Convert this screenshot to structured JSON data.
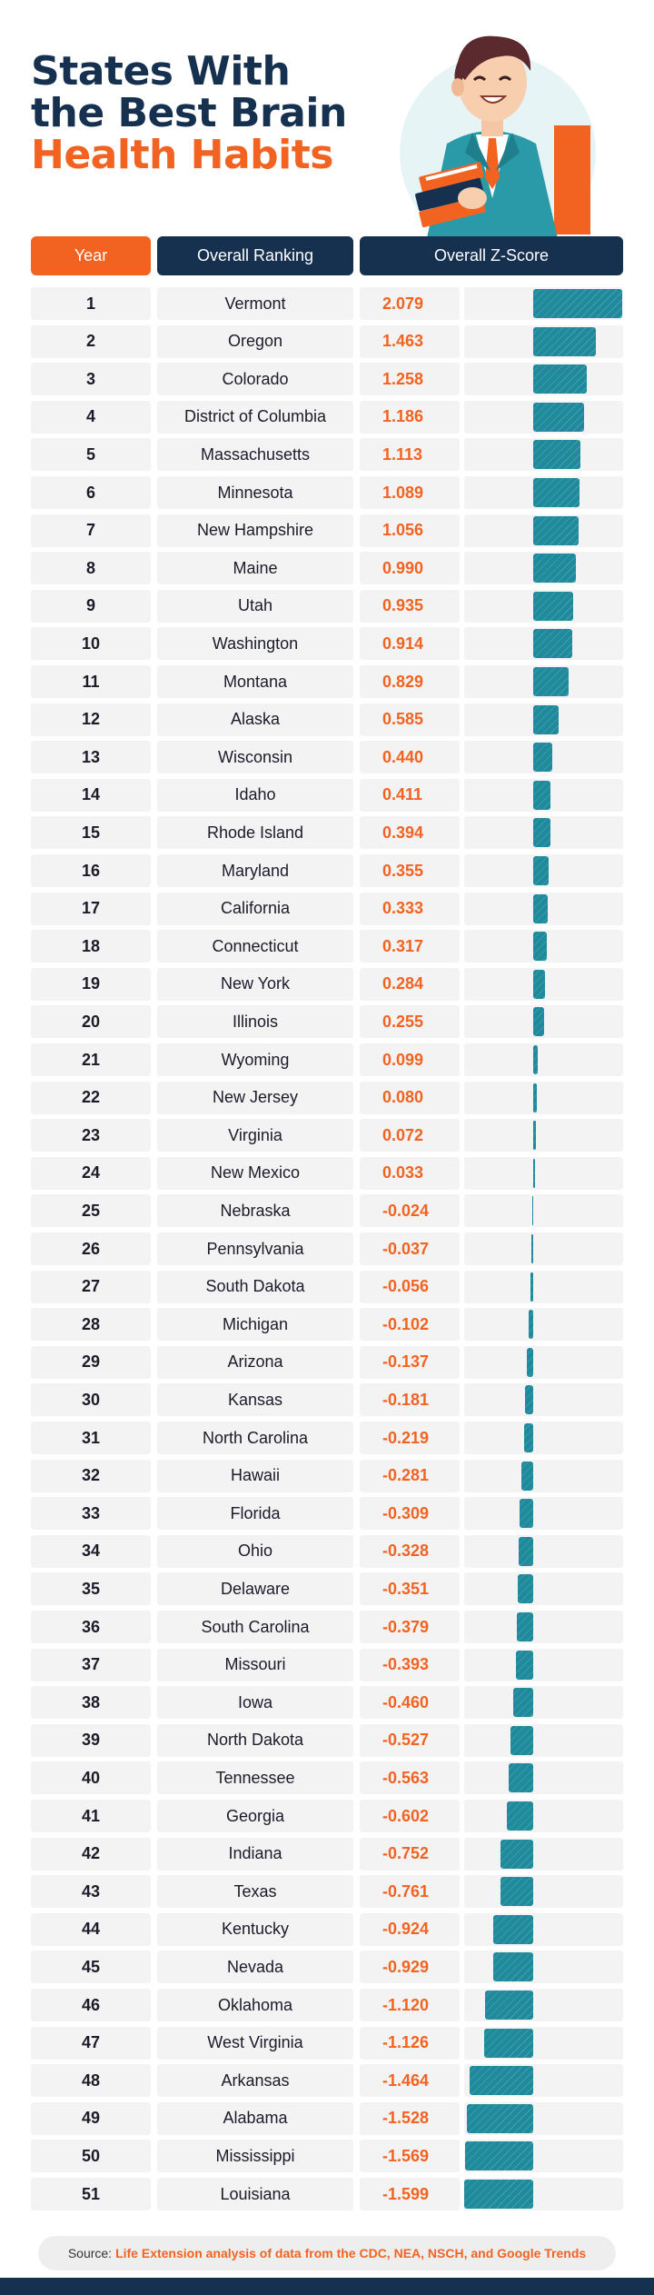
{
  "title": {
    "line1": "States With",
    "line2": "the Best Brain",
    "line3": "Health Habits"
  },
  "colors": {
    "navy": "#16314f",
    "orange": "#f26322",
    "teal": "#1f8a9c",
    "row_bg": "#f3f3f3"
  },
  "header": {
    "year": "Year",
    "ranking": "Overall Ranking",
    "zscore": "Overall Z-Score"
  },
  "chart_data": {
    "type": "bar",
    "orientation": "horizontal",
    "title": "States With the Best Brain Health Habits",
    "categories": [
      "Vermont",
      "Oregon",
      "Colorado",
      "District of Columbia",
      "Massachusetts",
      "Minnesota",
      "New Hampshire",
      "Maine",
      "Utah",
      "Washington",
      "Montana",
      "Alaska",
      "Wisconsin",
      "Idaho",
      "Rhode Island",
      "Maryland",
      "California",
      "Connecticut",
      "New York",
      "Illinois",
      "Wyoming",
      "New Jersey",
      "Virginia",
      "New Mexico",
      "Nebraska",
      "Pennsylvania",
      "South Dakota",
      "Michigan",
      "Arizona",
      "Kansas",
      "North Carolina",
      "Hawaii",
      "Florida",
      "Ohio",
      "Delaware",
      "South Carolina",
      "Missouri",
      "Iowa",
      "North Dakota",
      "Tennessee",
      "Georgia",
      "Indiana",
      "Texas",
      "Kentucky",
      "Nevada",
      "Oklahoma",
      "West Virginia",
      "Arkansas",
      "Alabama",
      "Mississippi",
      "Louisiana"
    ],
    "ranks": [
      "1",
      "2",
      "3",
      "4",
      "5",
      "6",
      "7",
      "8",
      "9",
      "10",
      "11",
      "12",
      "13",
      "14",
      "15",
      "16",
      "17",
      "18",
      "19",
      "20",
      "21",
      "22",
      "23",
      "24",
      "25",
      "26",
      "27",
      "28",
      "29",
      "30",
      "31",
      "32",
      "33",
      "34",
      "35",
      "36",
      "37",
      "38",
      "39",
      "40",
      "41",
      "42",
      "43",
      "44",
      "45",
      "46",
      "47",
      "48",
      "49",
      "50",
      "51"
    ],
    "values": [
      2.079,
      1.463,
      1.258,
      1.186,
      1.113,
      1.089,
      1.056,
      0.99,
      0.935,
      0.914,
      0.829,
      0.585,
      0.44,
      0.411,
      0.394,
      0.355,
      0.333,
      0.317,
      0.284,
      0.255,
      0.099,
      0.08,
      0.072,
      0.033,
      -0.024,
      -0.037,
      -0.056,
      -0.102,
      -0.137,
      -0.181,
      -0.219,
      -0.281,
      -0.309,
      -0.328,
      -0.351,
      -0.379,
      -0.393,
      -0.46,
      -0.527,
      -0.563,
      -0.602,
      -0.752,
      -0.761,
      -0.924,
      -0.929,
      -1.12,
      -1.126,
      -1.464,
      -1.528,
      -1.569,
      -1.599
    ],
    "labels": [
      "2.079",
      "1.463",
      "1.258",
      "1.186",
      "1.113",
      "1.089",
      "1.056",
      "0.990",
      "0.935",
      "0.914",
      "0.829",
      "0.585",
      "0.440",
      "0.411",
      "0.394",
      "0.355",
      "0.333",
      "0.317",
      "0.284",
      "0.255",
      "0.099",
      "0.080",
      "0.072",
      "0.033",
      "-0.024",
      "-0.037",
      "-0.056",
      "-0.102",
      "-0.137",
      "-0.181",
      "-0.219",
      "-0.281",
      "-0.309",
      "-0.328",
      "-0.351",
      "-0.379",
      "-0.393",
      "-0.460",
      "-0.527",
      "-0.563",
      "-0.602",
      "-0.752",
      "-0.761",
      "-0.924",
      "-0.929",
      "-1.120",
      "-1.126",
      "-1.464",
      "-1.528",
      "-1.569",
      "-1.599"
    ],
    "xlim": [
      -1.599,
      2.079
    ]
  },
  "source": {
    "label": "Source:",
    "text": "Life Extension analysis of data from the CDC, NEA, NSCH, and Google Trends"
  }
}
